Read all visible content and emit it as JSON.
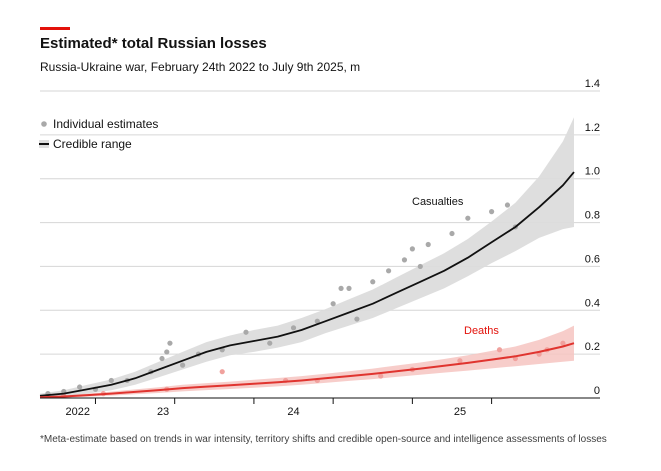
{
  "header": {
    "title": "Estimated* total Russian losses",
    "subtitle": "Russia-Ukraine war, February 24th 2022 to July 9th 2025, m"
  },
  "legend": {
    "individual_label": "Individual estimates",
    "range_label": "Credible range"
  },
  "footnote": "*Meta-estimate based on trends in war intensity, territory shifts and credible open-source and intelligence assessments of losses",
  "colors": {
    "accent": "#e3120b",
    "casualties_line": "#111111",
    "casualties_band": "#dcdcdc",
    "deaths_line": "#e0342f",
    "deaths_band": "#f6c4c1",
    "points_grey": "#a9a9a9",
    "points_red": "#f0a19d",
    "grid": "#d6d6d6"
  },
  "chart_data": {
    "type": "line",
    "title": "Estimated* total Russian losses",
    "subtitle": "Russia-Ukraine war, February 24th 2022 to July 9th 2025, m",
    "xlabel": "",
    "ylabel": "m",
    "ylim": [
      0,
      1.4
    ],
    "xlim": [
      2022.15,
      2025.52
    ],
    "yticks": [
      0,
      0.2,
      0.4,
      0.6,
      0.8,
      1.0,
      1.2,
      1.4
    ],
    "ytick_labels": [
      "0",
      "0.2",
      "0.4",
      "0.6",
      "0.8",
      "1.0",
      "1.2",
      "1.4"
    ],
    "xticks": [
      2022,
      2023,
      2024,
      2025
    ],
    "xtick_labels": [
      "2022",
      "23",
      "24",
      "25"
    ],
    "grid": true,
    "legend_position": "top-left",
    "series": [
      {
        "name": "Casualties",
        "label": "Casualties",
        "x": [
          2022.15,
          2022.3,
          2022.45,
          2022.6,
          2022.75,
          2022.9,
          2023.05,
          2023.2,
          2023.35,
          2023.5,
          2023.65,
          2023.8,
          2023.95,
          2024.1,
          2024.25,
          2024.4,
          2024.55,
          2024.7,
          2024.85,
          2025.0,
          2025.15,
          2025.3,
          2025.45,
          2025.52
        ],
        "values": [
          0.01,
          0.02,
          0.04,
          0.06,
          0.09,
          0.13,
          0.17,
          0.21,
          0.24,
          0.26,
          0.28,
          0.31,
          0.35,
          0.39,
          0.43,
          0.48,
          0.53,
          0.58,
          0.64,
          0.71,
          0.78,
          0.87,
          0.97,
          1.03
        ],
        "band_width": [
          0.01,
          0.015,
          0.02,
          0.025,
          0.03,
          0.035,
          0.04,
          0.045,
          0.045,
          0.05,
          0.05,
          0.055,
          0.055,
          0.06,
          0.065,
          0.07,
          0.075,
          0.08,
          0.085,
          0.095,
          0.11,
          0.14,
          0.2,
          0.25
        ]
      },
      {
        "name": "Deaths",
        "label": "Deaths",
        "x": [
          2022.15,
          2022.3,
          2022.45,
          2022.6,
          2022.75,
          2022.9,
          2023.05,
          2023.2,
          2023.35,
          2023.5,
          2023.65,
          2023.8,
          2023.95,
          2024.1,
          2024.25,
          2024.4,
          2024.55,
          2024.7,
          2024.85,
          2025.0,
          2025.15,
          2025.3,
          2025.45,
          2025.52
        ],
        "values": [
          0.003,
          0.007,
          0.013,
          0.02,
          0.028,
          0.036,
          0.045,
          0.052,
          0.058,
          0.065,
          0.072,
          0.08,
          0.09,
          0.1,
          0.11,
          0.122,
          0.134,
          0.147,
          0.16,
          0.175,
          0.19,
          0.21,
          0.235,
          0.25
        ],
        "band_width": [
          0.003,
          0.005,
          0.007,
          0.009,
          0.011,
          0.013,
          0.015,
          0.016,
          0.017,
          0.018,
          0.019,
          0.02,
          0.021,
          0.022,
          0.024,
          0.026,
          0.028,
          0.031,
          0.035,
          0.04,
          0.045,
          0.055,
          0.07,
          0.08
        ]
      }
    ],
    "individual_estimates": {
      "casualties": [
        {
          "x": 2022.2,
          "y": 0.02
        },
        {
          "x": 2022.3,
          "y": 0.03
        },
        {
          "x": 2022.4,
          "y": 0.05
        },
        {
          "x": 2022.5,
          "y": 0.04
        },
        {
          "x": 2022.6,
          "y": 0.08
        },
        {
          "x": 2022.7,
          "y": 0.08
        },
        {
          "x": 2022.85,
          "y": 0.12
        },
        {
          "x": 2022.92,
          "y": 0.18
        },
        {
          "x": 2022.95,
          "y": 0.21
        },
        {
          "x": 2022.97,
          "y": 0.25
        },
        {
          "x": 2023.05,
          "y": 0.15
        },
        {
          "x": 2023.15,
          "y": 0.2
        },
        {
          "x": 2023.3,
          "y": 0.22
        },
        {
          "x": 2023.45,
          "y": 0.3
        },
        {
          "x": 2023.6,
          "y": 0.25
        },
        {
          "x": 2023.75,
          "y": 0.32
        },
        {
          "x": 2023.9,
          "y": 0.35
        },
        {
          "x": 2024.0,
          "y": 0.43
        },
        {
          "x": 2024.05,
          "y": 0.5
        },
        {
          "x": 2024.1,
          "y": 0.5
        },
        {
          "x": 2024.15,
          "y": 0.36
        },
        {
          "x": 2024.25,
          "y": 0.53
        },
        {
          "x": 2024.35,
          "y": 0.58
        },
        {
          "x": 2024.45,
          "y": 0.63
        },
        {
          "x": 2024.5,
          "y": 0.68
        },
        {
          "x": 2024.55,
          "y": 0.6
        },
        {
          "x": 2024.6,
          "y": 0.7
        },
        {
          "x": 2024.75,
          "y": 0.75
        },
        {
          "x": 2024.85,
          "y": 0.82
        },
        {
          "x": 2025.0,
          "y": 0.85
        },
        {
          "x": 2025.1,
          "y": 0.88
        },
        {
          "x": 2025.15,
          "y": 0.78
        }
      ],
      "deaths": [
        {
          "x": 2022.3,
          "y": 0.01
        },
        {
          "x": 2022.55,
          "y": 0.02
        },
        {
          "x": 2022.95,
          "y": 0.04
        },
        {
          "x": 2023.3,
          "y": 0.12
        },
        {
          "x": 2023.7,
          "y": 0.08
        },
        {
          "x": 2023.9,
          "y": 0.08
        },
        {
          "x": 2024.3,
          "y": 0.1
        },
        {
          "x": 2024.5,
          "y": 0.13
        },
        {
          "x": 2024.8,
          "y": 0.17
        },
        {
          "x": 2025.05,
          "y": 0.22
        },
        {
          "x": 2025.15,
          "y": 0.18
        },
        {
          "x": 2025.3,
          "y": 0.2
        },
        {
          "x": 2025.35,
          "y": 0.22
        },
        {
          "x": 2025.45,
          "y": 0.25
        }
      ]
    }
  }
}
